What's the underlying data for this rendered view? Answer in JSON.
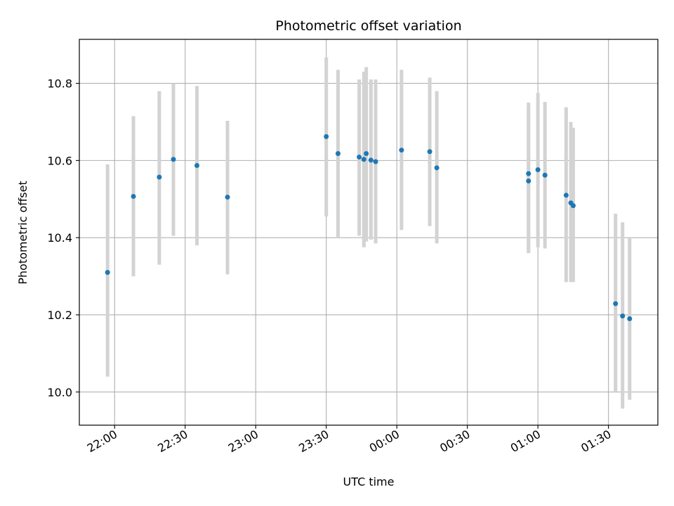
{
  "chart_data": {
    "type": "scatter",
    "title": "Photometric offset variation",
    "xlabel": "UTC time",
    "ylabel": "Photometric offset",
    "grid": true,
    "x_tick_labels": [
      "22:00",
      "22:30",
      "23:00",
      "23:30",
      "00:00",
      "00:30",
      "01:00",
      "01:30"
    ],
    "y_tick_labels": [
      "10.0",
      "10.2",
      "10.4",
      "10.6",
      "10.8"
    ],
    "y_ticks": [
      10.0,
      10.2,
      10.4,
      10.6,
      10.8
    ],
    "xlim": [
      "21:45",
      "01:51"
    ],
    "ylim": [
      9.914,
      10.914
    ],
    "marker_color": "#1f77b4",
    "errorbar_color": "#d3d3d3",
    "points": [
      {
        "time": "21:57",
        "y": 10.31,
        "ylow": 10.04,
        "yhigh": 10.59
      },
      {
        "time": "22:08",
        "y": 10.507,
        "ylow": 10.3,
        "yhigh": 10.715
      },
      {
        "time": "22:19",
        "y": 10.557,
        "ylow": 10.33,
        "yhigh": 10.78
      },
      {
        "time": "22:25",
        "y": 10.603,
        "ylow": 10.405,
        "yhigh": 10.8
      },
      {
        "time": "22:35",
        "y": 10.587,
        "ylow": 10.38,
        "yhigh": 10.793
      },
      {
        "time": "22:48",
        "y": 10.505,
        "ylow": 10.305,
        "yhigh": 10.703
      },
      {
        "time": "23:30",
        "y": 10.662,
        "ylow": 10.455,
        "yhigh": 10.867
      },
      {
        "time": "23:35",
        "y": 10.618,
        "ylow": 10.4,
        "yhigh": 10.835
      },
      {
        "time": "23:44",
        "y": 10.609,
        "ylow": 10.405,
        "yhigh": 10.81
      },
      {
        "time": "23:46",
        "y": 10.603,
        "ylow": 10.375,
        "yhigh": 10.83
      },
      {
        "time": "23:47",
        "y": 10.618,
        "ylow": 10.39,
        "yhigh": 10.842
      },
      {
        "time": "23:49",
        "y": 10.601,
        "ylow": 10.395,
        "yhigh": 10.81
      },
      {
        "time": "23:51",
        "y": 10.597,
        "ylow": 10.385,
        "yhigh": 10.81
      },
      {
        "time": "00:02",
        "y": 10.627,
        "ylow": 10.42,
        "yhigh": 10.835
      },
      {
        "time": "00:14",
        "y": 10.623,
        "ylow": 10.43,
        "yhigh": 10.815
      },
      {
        "time": "00:17",
        "y": 10.581,
        "ylow": 10.385,
        "yhigh": 10.78
      },
      {
        "time": "00:56",
        "y": 10.547,
        "ylow": 10.36,
        "yhigh": 10.735
      },
      {
        "time": "00:56",
        "y": 10.566,
        "ylow": 10.36,
        "yhigh": 10.75
      },
      {
        "time": "01:00",
        "y": 10.576,
        "ylow": 10.375,
        "yhigh": 10.775
      },
      {
        "time": "01:03",
        "y": 10.562,
        "ylow": 10.372,
        "yhigh": 10.752
      },
      {
        "time": "01:12",
        "y": 10.51,
        "ylow": 10.285,
        "yhigh": 10.738
      },
      {
        "time": "01:14",
        "y": 10.49,
        "ylow": 10.285,
        "yhigh": 10.7
      },
      {
        "time": "01:15",
        "y": 10.483,
        "ylow": 10.285,
        "yhigh": 10.685
      },
      {
        "time": "01:33",
        "y": 10.229,
        "ylow": 10.0,
        "yhigh": 10.462
      },
      {
        "time": "01:36",
        "y": 10.197,
        "ylow": 9.957,
        "yhigh": 10.44
      },
      {
        "time": "01:39",
        "y": 10.19,
        "ylow": 9.98,
        "yhigh": 10.4
      }
    ]
  }
}
